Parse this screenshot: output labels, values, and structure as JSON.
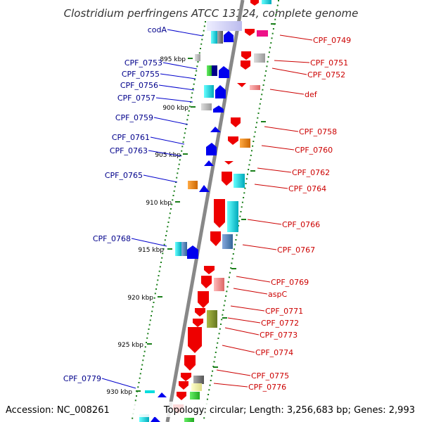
{
  "title": "Clostridium perfringens ATCC 13124, complete genome",
  "accession": "Accession: NC_008261",
  "topology": "Topology: circular; Length: 3,256,683 bp; Genes: 2,993",
  "colors": {
    "axis": "#888888",
    "tick": "#1a7f1a",
    "left_label": "#00008b",
    "right_label": "#cc0000",
    "forward_arrow": "#0000ee",
    "reverse_arrow": "#ee0000"
  },
  "scale_ticks": [
    {
      "label": "895 kbp",
      "kbp": 895
    },
    {
      "label": "900 kbp",
      "kbp": 900
    },
    {
      "label": "905 kbp",
      "kbp": 905
    },
    {
      "label": "910 kbp",
      "kbp": 910
    },
    {
      "label": "915 kbp",
      "kbp": 915
    },
    {
      "label": "920 kbp",
      "kbp": 920
    },
    {
      "label": "925 kbp",
      "kbp": 925
    },
    {
      "label": "930 kbp",
      "kbp": 930
    }
  ],
  "left_genes": [
    "codA",
    "CPF_0753",
    "CPF_0755",
    "CPF_0756",
    "CPF_0757",
    "CPF_0759",
    "CPF_0761",
    "CPF_0763",
    "CPF_0765",
    "CPF_0768",
    "CPF_0779"
  ],
  "right_genes": [
    "CPF_0749",
    "CPF_0751",
    "CPF_0752",
    "def",
    "CPF_0758",
    "CPF_0760",
    "CPF_0762",
    "CPF_0764",
    "CPF_0766",
    "CPF_0767",
    "CPF_0769",
    "aspC",
    "CPF_0771",
    "CPF_0772",
    "CPF_0773",
    "CPF_0774",
    "CPF_0775",
    "CPF_0776"
  ]
}
